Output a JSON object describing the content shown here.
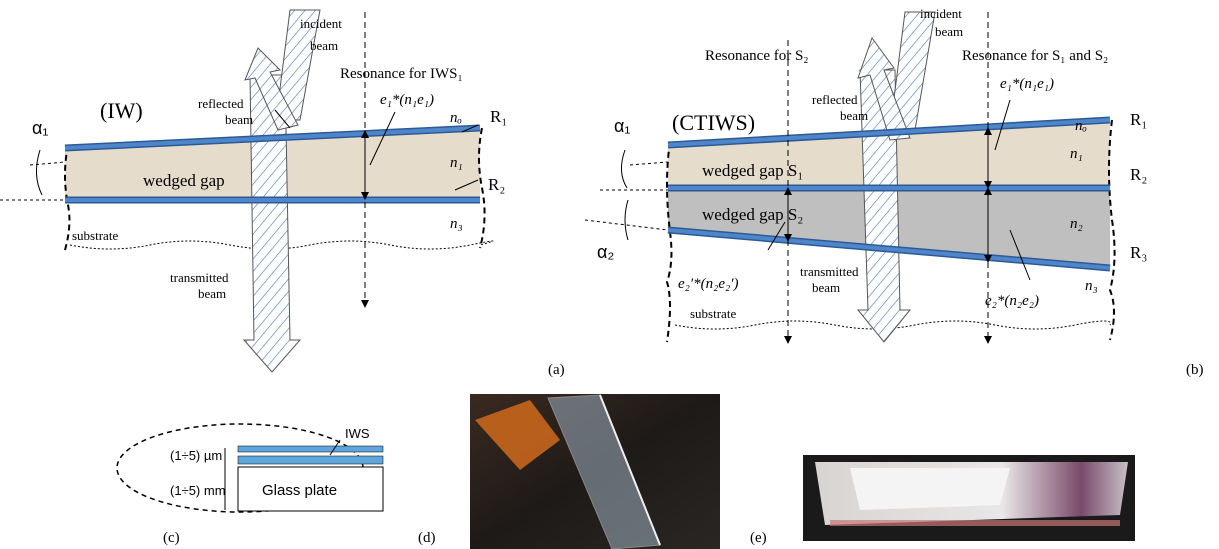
{
  "panel_a": {
    "incident_beam": [
      "incident",
      "beam"
    ],
    "resonance": "Resonance for IWS₁",
    "thickness": "e₁*(n₁e₁)",
    "structure": "(IW)",
    "reflected_beam": [
      "reflected",
      "beam"
    ],
    "angle": "α₁",
    "n_outer": "nₒ",
    "mirror_1": "R₁",
    "gap": "wedged gap",
    "n_gap": "n₁",
    "mirror_2": "R₂",
    "n_substrate": "n₃",
    "substrate": "substrate",
    "transmitted_beam": [
      "transmitted",
      "beam"
    ],
    "label": "(a)"
  },
  "panel_b": {
    "resonance_s2": "Resonance for S₂",
    "incident_beam": [
      "incident",
      "beam"
    ],
    "resonance_s1_s2": "Resonance for S₁ and S₂",
    "thickness_1": "e₁*(n₁e₁)",
    "structure": "(CTIWS)",
    "angle_1": "α₁",
    "reflected_beam": [
      "reflected",
      "beam"
    ],
    "n_outer": "nₒ",
    "mirror_1": "R₁",
    "gap_1": "wedged gap S₁",
    "n_gap_1": "n₁",
    "mirror_2": "R₂",
    "gap_2": "wedged gap S₂",
    "n_gap_2": "n₂",
    "angle_2": "α₂",
    "mirror_3": "R₃",
    "thickness_2_left": "e₂′*(n₂e₂′)",
    "transmitted_beam": [
      "transmitted",
      "beam"
    ],
    "n_substrate": "n₃",
    "thickness_2_right": "e₂*(n₂e₂)",
    "substrate": "substrate",
    "label": "(b)"
  },
  "panel_c": {
    "sample": "IWS",
    "film_thickness": "(1÷5) µm",
    "plate_thickness": "(1÷5) mm",
    "plate": "Glass plate",
    "label": "(c)"
  },
  "panel_d": {
    "label": "(d)"
  },
  "panel_e": {
    "label": "(e)"
  }
}
